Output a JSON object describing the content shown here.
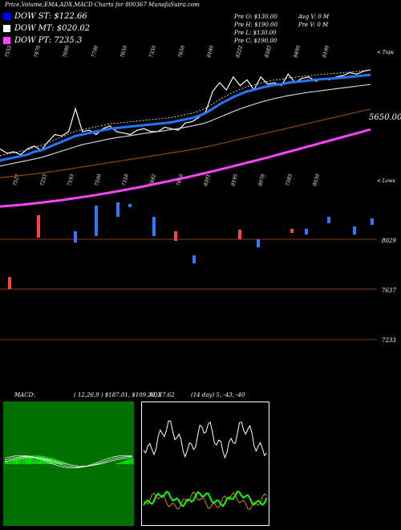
{
  "title": "Price,Volume,EMA,ADX,MACD Charts for 800367 MunafaSutra.com",
  "legend": [
    {
      "label": "DOW ST: $122.66",
      "color": "#0000ff"
    },
    {
      "label": "DOW MT: $020.02",
      "color": "#ffffff"
    },
    {
      "label": "DOW PT: 7235.3",
      "color": "#ff44ff"
    }
  ],
  "ohlc": {
    "open": "Pre  O: $130.00",
    "high": "Pre  H: $190.00",
    "low": "Pre  L: $130.00",
    "close": "Pre  C: $190.00",
    "avg_vol": "Avg V: 0  M",
    "pre_vol": "Pre  V: 0  M"
  },
  "top_label": "< Tops",
  "lows_label": "< Lows",
  "top_ticks": [
    "7553",
    "7470",
    "7690",
    "7700",
    "7650",
    "7350",
    "7650",
    "8180",
    "8222",
    "8383",
    "8490",
    "8190"
  ],
  "low_ticks": [
    "7527",
    "7253",
    "7193",
    "7500",
    "7318",
    "7482",
    "7810",
    "8391",
    "8195",
    "8078",
    "7383",
    "8030"
  ],
  "price_label": "5650.00",
  "y_labels": [
    "8029",
    "7637",
    "7233"
  ],
  "macd": {
    "label": "MACD:",
    "values": "( 12,26,9 ) $187.01, $109.39, 27.62"
  },
  "adx": {
    "label": "ADX",
    "values": "(14  day) 5, -43, -40"
  },
  "chart_data": {
    "type": "line",
    "series": [
      {
        "name": "price",
        "color": "#ffffff",
        "values": [
          7600,
          7570,
          7580,
          7560,
          7600,
          7620,
          7590,
          7650,
          7700,
          7690,
          7720,
          7880,
          7720,
          7730,
          7700,
          7740,
          7760,
          7720,
          7710,
          7700,
          7730,
          7740,
          7720,
          7720,
          7750,
          7740,
          7730,
          7780,
          7790,
          7820,
          7860,
          8000,
          8060,
          8010,
          8100,
          8040,
          8080,
          8010,
          8100,
          8050,
          8060,
          8040,
          8120,
          8060,
          8090,
          8100,
          8070,
          8090,
          8080,
          8100,
          8110,
          8130,
          8120,
          8140,
          8150
        ]
      },
      {
        "name": "ema_short",
        "color": "#2277ff",
        "values": [
          7520,
          7530,
          7540,
          7550,
          7560,
          7580,
          7590,
          7610,
          7630,
          7650,
          7670,
          7690,
          7700,
          7710,
          7720,
          7730,
          7740,
          7745,
          7750,
          7755,
          7760,
          7765,
          7770,
          7775,
          7780,
          7785,
          7795,
          7805,
          7815,
          7830,
          7850,
          7880,
          7910,
          7935,
          7960,
          7980,
          8000,
          8010,
          8025,
          8035,
          8045,
          8050,
          8060,
          8065,
          8070,
          8075,
          8080,
          8085,
          8088,
          8092,
          8096,
          8100,
          8105,
          8110,
          8115
        ]
      },
      {
        "name": "ema_mid",
        "color": "#cfcfcf",
        "values": [
          7480,
          7490,
          7500,
          7510,
          7520,
          7530,
          7540,
          7555,
          7570,
          7585,
          7600,
          7615,
          7630,
          7640,
          7650,
          7660,
          7670,
          7678,
          7685,
          7692,
          7700,
          7707,
          7714,
          7720,
          7727,
          7734,
          7742,
          7750,
          7760,
          7770,
          7782,
          7800,
          7820,
          7840,
          7860,
          7878,
          7895,
          7910,
          7925,
          7938,
          7950,
          7960,
          7970,
          7978,
          7986,
          7994,
          8000,
          8006,
          8012,
          8018,
          8024,
          8030,
          8036,
          8042,
          8048
        ]
      },
      {
        "name": "ema_long",
        "color": "#8a4a00",
        "values": [
          7400,
          7405,
          7410,
          7415,
          7420,
          7426,
          7432,
          7438,
          7445,
          7452,
          7460,
          7467,
          7475,
          7482,
          7490,
          7497,
          7505,
          7512,
          7520,
          7527,
          7535,
          7542,
          7550,
          7557,
          7565,
          7572,
          7580,
          7588,
          7596,
          7605,
          7614,
          7624,
          7635,
          7646,
          7657,
          7668,
          7679,
          7690,
          7701,
          7712,
          7723,
          7734,
          7745,
          7756,
          7767,
          7778,
          7789,
          7800,
          7811,
          7822,
          7833,
          7844,
          7855,
          7866,
          7877
        ]
      },
      {
        "name": "ema_xlong",
        "color": "#ff44ff",
        "values": [
          7200,
          7203,
          7207,
          7211,
          7216,
          7221,
          7226,
          7232,
          7238,
          7244,
          7251,
          7258,
          7265,
          7272,
          7280,
          7288,
          7296,
          7304,
          7313,
          7322,
          7331,
          7340,
          7350,
          7360,
          7370,
          7380,
          7390,
          7400,
          7411,
          7422,
          7433,
          7444,
          7456,
          7468,
          7480,
          7492,
          7504,
          7516,
          7528,
          7540,
          7553,
          7566,
          7579,
          7592,
          7605,
          7618,
          7631,
          7644,
          7657,
          7670,
          7683,
          7696,
          7709,
          7722,
          7735
        ]
      }
    ],
    "ylim": [
      7100,
      8300
    ]
  }
}
